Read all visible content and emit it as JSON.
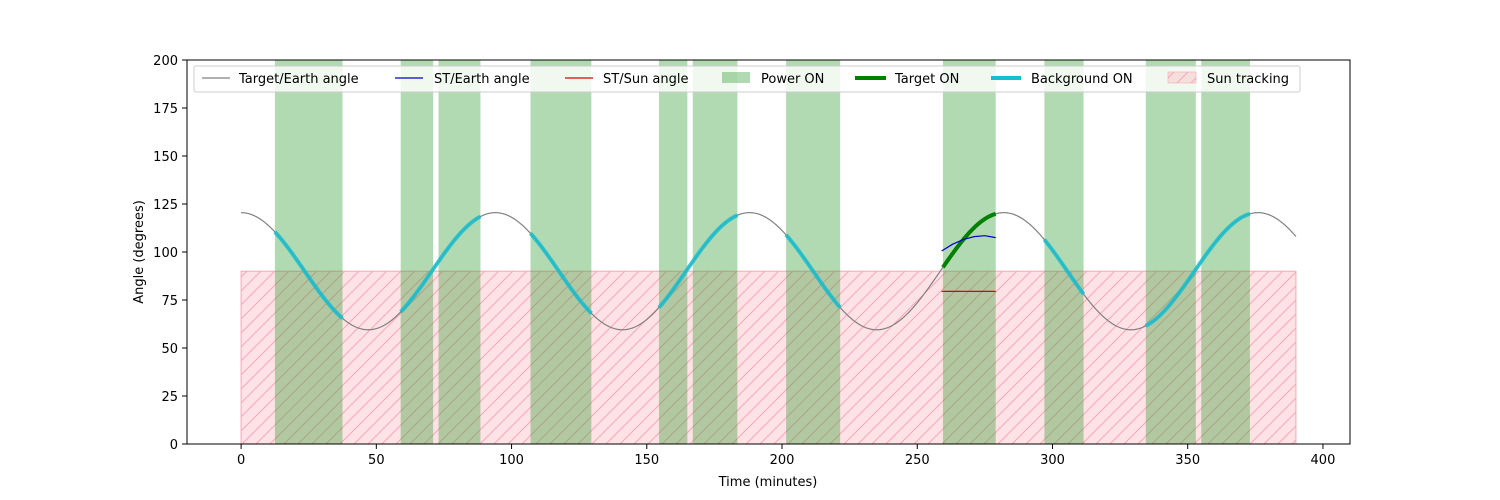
{
  "chart_data": {
    "type": "line",
    "title": "",
    "xlabel": "Time (minutes)",
    "ylabel": "Angle (degrees)",
    "xlim": [
      -20,
      410
    ],
    "ylim": [
      0,
      200
    ],
    "xticks": [
      0,
      50,
      100,
      150,
      200,
      250,
      300,
      350,
      400
    ],
    "yticks": [
      0,
      25,
      50,
      75,
      100,
      125,
      150,
      175,
      200
    ],
    "grid": false,
    "legend_placement": "top",
    "target_earth": {
      "name": "Target/Earth angle",
      "color": "#808080",
      "period_min": 94,
      "center_deg": 90,
      "amplitude_deg": 30.5,
      "peak_times": [
        0,
        94,
        188,
        282,
        376
      ],
      "x_range": [
        0,
        390
      ]
    },
    "st_earth": {
      "name": "ST/Earth angle",
      "color": "#0000cc",
      "x": [
        259,
        263,
        267,
        271,
        275,
        279
      ],
      "y": [
        100.5,
        104,
        106.5,
        108,
        108.5,
        107.5
      ]
    },
    "st_sun": {
      "name": "ST/Sun angle",
      "color": "#dd0000",
      "x": [
        259,
        279
      ],
      "y": [
        79.5,
        79.5
      ]
    },
    "power_on": {
      "name": "Power ON",
      "color": "#2e9a2e",
      "intervals": [
        [
          12.5,
          37.5
        ],
        [
          59,
          71
        ],
        [
          73,
          88.5
        ],
        [
          107,
          129.5
        ],
        [
          154.5,
          165
        ],
        [
          167,
          183.5
        ],
        [
          201.5,
          221.5
        ],
        [
          259.5,
          279
        ],
        [
          297,
          311.5
        ],
        [
          334.5,
          353
        ],
        [
          355,
          373
        ]
      ]
    },
    "target_on": {
      "name": "Target ON",
      "color": "#008000",
      "intervals": [
        [
          259.5,
          279
        ]
      ]
    },
    "background_on": {
      "name": "Background ON",
      "color": "#17becf",
      "intervals": [
        [
          12.5,
          37.5
        ],
        [
          59,
          88.5
        ],
        [
          107,
          129.5
        ],
        [
          154.5,
          183.5
        ],
        [
          201.5,
          221.5
        ],
        [
          297,
          311.5
        ],
        [
          334.5,
          373
        ]
      ]
    },
    "sun_tracking": {
      "name": "Sun tracking",
      "color": "#ffb6c1",
      "x_range": [
        0,
        390
      ],
      "y_range": [
        0,
        90
      ]
    }
  }
}
